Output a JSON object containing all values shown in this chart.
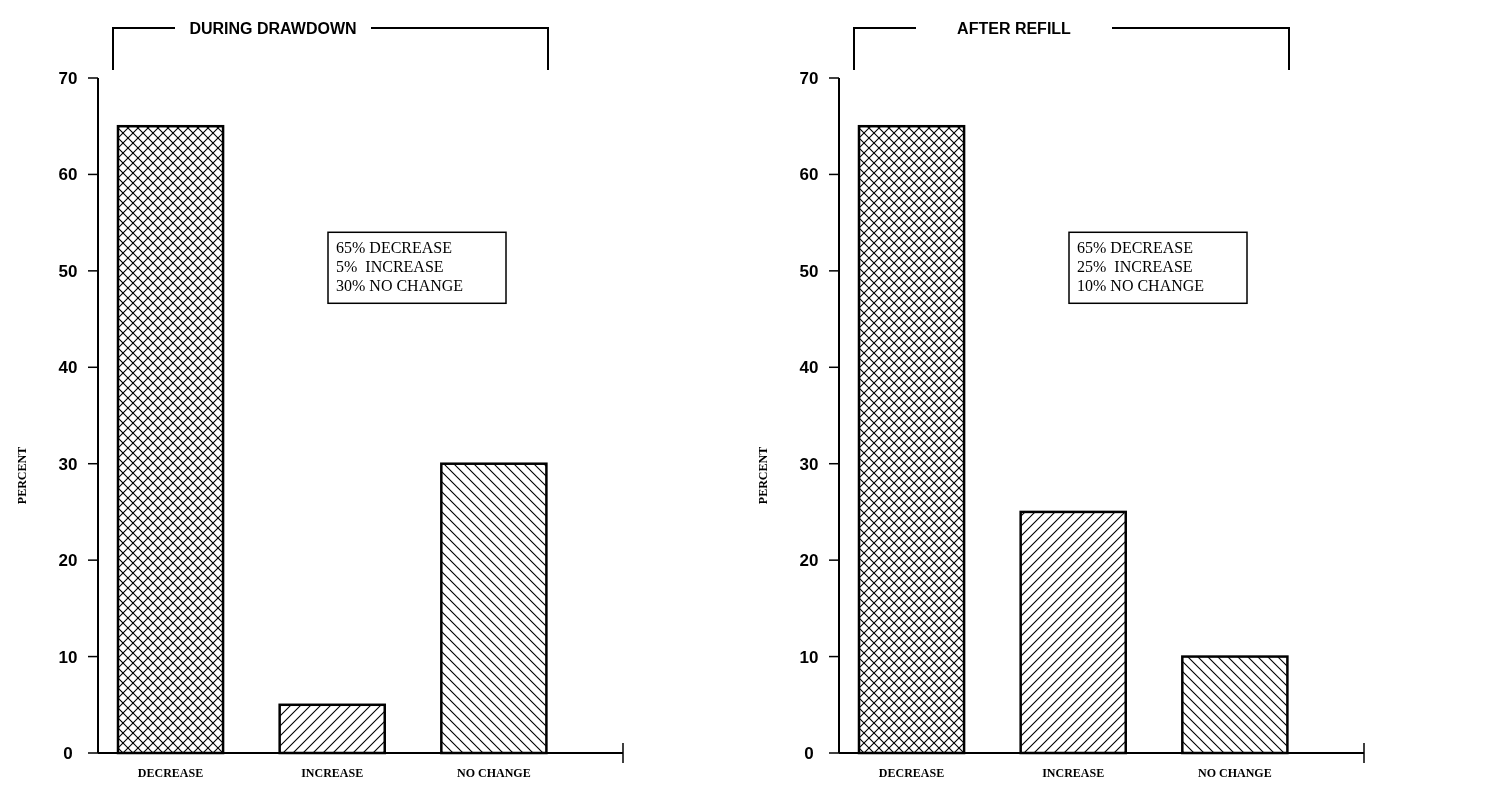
{
  "chart_data": [
    {
      "type": "bar",
      "title": "DURING DRAWDOWN",
      "ylabel": "PERCENT",
      "categories": [
        "DECREASE",
        "INCREASE",
        "NO CHANGE"
      ],
      "values": [
        65,
        5,
        30
      ],
      "colors": [
        "#000000",
        "#000000",
        "#000000"
      ],
      "ylim": [
        0,
        70
      ],
      "yticks": [
        0,
        10,
        20,
        30,
        40,
        50,
        60,
        70
      ],
      "annotations": [
        "65% DECREASE",
        "5%  INCREASE",
        "30% NO CHANGE"
      ]
    },
    {
      "type": "bar",
      "title": "AFTER REFILL",
      "ylabel": "PERCENT",
      "categories": [
        "DECREASE",
        "INCREASE",
        "NO CHANGE"
      ],
      "values": [
        65,
        25,
        10
      ],
      "colors": [
        "#000000",
        "#000000",
        "#000000"
      ],
      "ylim": [
        0,
        70
      ],
      "yticks": [
        0,
        10,
        20,
        30,
        40,
        50,
        60,
        70
      ],
      "annotations": [
        "65% DECREASE",
        "25%  INCREASE",
        "10% NO CHANGE"
      ]
    }
  ]
}
